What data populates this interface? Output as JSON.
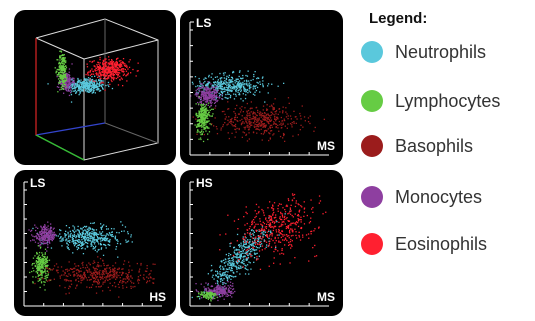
{
  "legend": {
    "title": "Legend:",
    "items": [
      {
        "label": "Neutrophils",
        "color": "#5ac8dc"
      },
      {
        "label": "Lymphocytes",
        "color": "#66cc44"
      },
      {
        "label": "Basophils",
        "color": "#9b1c1c"
      },
      {
        "label": "Monocytes",
        "color": "#8e3fa0"
      },
      {
        "label": "Eosinophils",
        "color": "#ff2030"
      }
    ]
  },
  "chart_data": [
    {
      "type": "scatter",
      "title": "",
      "view": "3d",
      "xlabel": "",
      "ylabel": "",
      "series": [
        {
          "name": "Neutrophils",
          "clusters": [
            {
              "cx": 0.42,
              "cy": 0.5,
              "sx": 0.08,
              "sy": 0.03
            }
          ]
        },
        {
          "name": "Eosinophils",
          "clusters": [
            {
              "cx": 0.62,
              "cy": 0.62,
              "sx": 0.08,
              "sy": 0.04
            }
          ]
        },
        {
          "name": "Monocytes",
          "clusters": [
            {
              "cx": 0.25,
              "cy": 0.53,
              "sx": 0.03,
              "sy": 0.04
            }
          ]
        },
        {
          "name": "Lymphocytes",
          "clusters": [
            {
              "cx": 0.22,
              "cy": 0.62,
              "sx": 0.02,
              "sy": 0.07
            }
          ]
        },
        {
          "name": "Basophils",
          "clusters": []
        }
      ]
    },
    {
      "type": "scatter",
      "title": "",
      "xlabel": "MS",
      "ylabel": "LS",
      "series": [
        {
          "name": "Neutrophils",
          "clusters": [
            {
              "cx": 0.28,
              "cy": 0.53,
              "sx": 0.12,
              "sy": 0.05
            }
          ]
        },
        {
          "name": "Monocytes",
          "clusters": [
            {
              "cx": 0.12,
              "cy": 0.45,
              "sx": 0.04,
              "sy": 0.04
            }
          ]
        },
        {
          "name": "Lymphocytes",
          "clusters": [
            {
              "cx": 0.09,
              "cy": 0.24,
              "sx": 0.025,
              "sy": 0.07
            }
          ]
        },
        {
          "name": "Basophils",
          "clusters": [
            {
              "cx": 0.5,
              "cy": 0.22,
              "sx": 0.15,
              "sy": 0.07
            }
          ]
        },
        {
          "name": "Eosinophils",
          "clusters": []
        }
      ]
    },
    {
      "type": "scatter",
      "title": "",
      "xlabel": "HS",
      "ylabel": "LS",
      "series": [
        {
          "name": "Neutrophils",
          "clusters": [
            {
              "cx": 0.45,
              "cy": 0.6,
              "sx": 0.13,
              "sy": 0.05
            }
          ]
        },
        {
          "name": "Monocytes",
          "clusters": [
            {
              "cx": 0.15,
              "cy": 0.62,
              "sx": 0.04,
              "sy": 0.04
            }
          ]
        },
        {
          "name": "Lymphocytes",
          "clusters": [
            {
              "cx": 0.12,
              "cy": 0.35,
              "sx": 0.025,
              "sy": 0.06
            }
          ]
        },
        {
          "name": "Basophils",
          "clusters": [
            {
              "cx": 0.55,
              "cy": 0.27,
              "sx": 0.18,
              "sy": 0.06
            }
          ]
        },
        {
          "name": "Eosinophils",
          "clusters": []
        }
      ]
    },
    {
      "type": "scatter",
      "title": "",
      "xlabel": "MS",
      "ylabel": "HS",
      "series": [
        {
          "name": "Neutrophils",
          "clusters": [
            {
              "cx": 0.35,
              "cy": 0.42,
              "sx": 0.11,
              "sy": 0.14,
              "rho": 0.85
            }
          ]
        },
        {
          "name": "Eosinophils",
          "clusters": [
            {
              "cx": 0.62,
              "cy": 0.7,
              "sx": 0.14,
              "sy": 0.13,
              "rho": 0.3
            }
          ]
        },
        {
          "name": "Monocytes",
          "clusters": [
            {
              "cx": 0.2,
              "cy": 0.13,
              "sx": 0.05,
              "sy": 0.03
            }
          ]
        },
        {
          "name": "Lymphocytes",
          "clusters": [
            {
              "cx": 0.13,
              "cy": 0.09,
              "sx": 0.03,
              "sy": 0.02
            }
          ]
        },
        {
          "name": "Basophils",
          "clusters": []
        }
      ]
    }
  ]
}
